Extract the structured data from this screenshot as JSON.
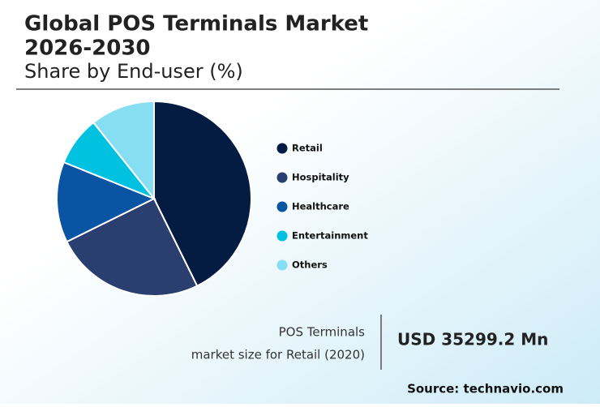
{
  "chart_data": {
    "type": "pie",
    "title": [
      "Global POS Terminals Market",
      "2026-2030"
    ],
    "subtitle": "Share by End-user (%)",
    "categories": [
      "Retail",
      "Hospitality",
      "Healthcare",
      "Entertainment",
      "Others"
    ],
    "values": [
      42.7,
      25,
      13.4,
      8.2,
      10.7
    ],
    "colors": [
      "#041c42",
      "#2a3f6f",
      "#0a55a3",
      "#00c2e0",
      "#86def2"
    ],
    "annotation": {
      "lines": [
        "POS Terminals",
        "market size for Retail (2020)"
      ],
      "value": "USD 35299.2 Mn"
    },
    "source": "Source: technavio.com"
  }
}
